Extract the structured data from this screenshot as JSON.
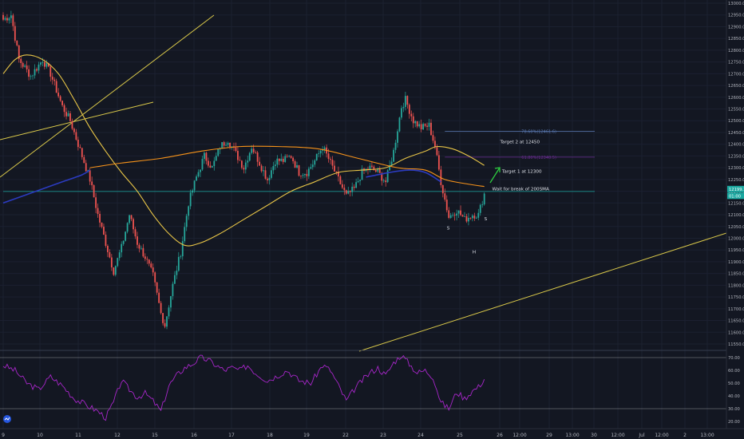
{
  "chart_data": [
    {
      "type": "candlestick",
      "title": "",
      "ylim": [
        11500,
        13000
      ],
      "y_ticks": [
        11550,
        11600,
        11650,
        11700,
        11750,
        11800,
        11850,
        11900,
        11950,
        12000,
        12050,
        12100,
        12150,
        12200,
        12250,
        12300,
        12350,
        12400,
        12450,
        12500,
        12550,
        12600,
        12650,
        12700,
        12750,
        12800,
        12850,
        12900,
        12950,
        13000
      ],
      "y_tick_labels": [
        "11550.0",
        "11600.0",
        "11650.0",
        "11700.0",
        "11750.0",
        "11800.0",
        "11850.0",
        "11900.0",
        "11950.0",
        "12000.0",
        "12050.0",
        "12100.0",
        "12150.0",
        "12200.0",
        "12250.0",
        "12300.0",
        "12350.0",
        "12400.0",
        "12450.0",
        "12500.0",
        "12550.0",
        "12600.0",
        "12650.0",
        "12700.0",
        "12750.0",
        "12800.0",
        "12850.0",
        "12900.0",
        "12950.0",
        "13000.0"
      ],
      "x_tick_labels": [
        "9",
        "10",
        "11",
        "12",
        "15",
        "16",
        "17",
        "18",
        "19",
        "22",
        "23",
        "24",
        "25",
        "26",
        "12:00",
        "29",
        "13:00",
        "30",
        "12:00",
        "Jul",
        "12:00",
        "2",
        "13:00"
      ],
      "last_price_label": "12199.1",
      "countdown_label": "01:00",
      "anchors": [
        {
          "i": 0,
          "v": 12930
        },
        {
          "i": 4,
          "v": 12950
        },
        {
          "i": 8,
          "v": 12760
        },
        {
          "i": 14,
          "v": 12690
        },
        {
          "i": 20,
          "v": 12760
        },
        {
          "i": 24,
          "v": 12700
        },
        {
          "i": 30,
          "v": 12560
        },
        {
          "i": 34,
          "v": 12500
        },
        {
          "i": 40,
          "v": 12350
        },
        {
          "i": 44,
          "v": 12250
        },
        {
          "i": 48,
          "v": 12100
        },
        {
          "i": 52,
          "v": 11980
        },
        {
          "i": 56,
          "v": 11860
        },
        {
          "i": 60,
          "v": 11960
        },
        {
          "i": 64,
          "v": 12100
        },
        {
          "i": 68,
          "v": 11980
        },
        {
          "i": 72,
          "v": 11920
        },
        {
          "i": 76,
          "v": 11840
        },
        {
          "i": 80,
          "v": 11680
        },
        {
          "i": 82,
          "v": 11630
        },
        {
          "i": 86,
          "v": 11800
        },
        {
          "i": 90,
          "v": 11940
        },
        {
          "i": 94,
          "v": 12150
        },
        {
          "i": 98,
          "v": 12260
        },
        {
          "i": 102,
          "v": 12350
        },
        {
          "i": 106,
          "v": 12300
        },
        {
          "i": 110,
          "v": 12390
        },
        {
          "i": 114,
          "v": 12420
        },
        {
          "i": 118,
          "v": 12360
        },
        {
          "i": 122,
          "v": 12300
        },
        {
          "i": 126,
          "v": 12390
        },
        {
          "i": 130,
          "v": 12320
        },
        {
          "i": 134,
          "v": 12250
        },
        {
          "i": 138,
          "v": 12330
        },
        {
          "i": 142,
          "v": 12330
        },
        {
          "i": 146,
          "v": 12350
        },
        {
          "i": 150,
          "v": 12280
        },
        {
          "i": 154,
          "v": 12280
        },
        {
          "i": 158,
          "v": 12330
        },
        {
          "i": 162,
          "v": 12390
        },
        {
          "i": 166,
          "v": 12320
        },
        {
          "i": 170,
          "v": 12250
        },
        {
          "i": 174,
          "v": 12180
        },
        {
          "i": 178,
          "v": 12210
        },
        {
          "i": 182,
          "v": 12280
        },
        {
          "i": 186,
          "v": 12300
        },
        {
          "i": 190,
          "v": 12280
        },
        {
          "i": 194,
          "v": 12240
        },
        {
          "i": 198,
          "v": 12370
        },
        {
          "i": 202,
          "v": 12560
        },
        {
          "i": 204,
          "v": 12590
        },
        {
          "i": 208,
          "v": 12500
        },
        {
          "i": 212,
          "v": 12470
        },
        {
          "i": 216,
          "v": 12480
        },
        {
          "i": 219,
          "v": 12390
        },
        {
          "i": 222,
          "v": 12240
        },
        {
          "i": 226,
          "v": 12090
        },
        {
          "i": 230,
          "v": 12120
        },
        {
          "i": 234,
          "v": 12080
        },
        {
          "i": 238,
          "v": 12100
        },
        {
          "i": 241,
          "v": 12100
        },
        {
          "i": 244,
          "v": 12190
        }
      ],
      "last_bar_index": 244,
      "moving_averages": [
        {
          "name": "",
          "color": "#e8c547",
          "points": [
            [
              0,
              12700
            ],
            [
              6,
              12760
            ],
            [
              12,
              12780
            ],
            [
              20,
              12760
            ],
            [
              28,
              12700
            ],
            [
              36,
              12590
            ],
            [
              44,
              12470
            ],
            [
              52,
              12370
            ],
            [
              60,
              12280
            ],
            [
              68,
              12200
            ],
            [
              76,
              12100
            ],
            [
              84,
              12020
            ],
            [
              92,
              11970
            ],
            [
              100,
              11980
            ],
            [
              110,
              12020
            ],
            [
              122,
              12080
            ],
            [
              134,
              12140
            ],
            [
              146,
              12200
            ],
            [
              158,
              12240
            ],
            [
              170,
              12280
            ],
            [
              182,
              12290
            ],
            [
              194,
              12300
            ],
            [
              204,
              12340
            ],
            [
              214,
              12370
            ],
            [
              220,
              12390
            ],
            [
              228,
              12380
            ],
            [
              236,
              12350
            ],
            [
              244,
              12310
            ]
          ]
        },
        {
          "name": "",
          "color": "#f7931a",
          "points": [
            [
              44,
              12300
            ],
            [
              60,
              12320
            ],
            [
              80,
              12340
            ],
            [
              100,
              12370
            ],
            [
              120,
              12390
            ],
            [
              140,
              12390
            ],
            [
              160,
              12380
            ],
            [
              180,
              12340
            ],
            [
              200,
              12300
            ],
            [
              214,
              12290
            ],
            [
              224,
              12250
            ],
            [
              236,
              12230
            ],
            [
              244,
              12220
            ]
          ]
        },
        {
          "name": "",
          "color": "#2b3bc0",
          "points": [
            [
              0,
              12150
            ],
            [
              10,
              12180
            ],
            [
              20,
              12210
            ],
            [
              30,
              12240
            ],
            [
              40,
              12270
            ],
            [
              44,
              12290
            ]
          ]
        },
        {
          "name": "",
          "color": "#2b3bc0",
          "points": [
            [
              184,
              12260
            ],
            [
              196,
              12280
            ],
            [
              206,
              12290
            ],
            [
              214,
              12280
            ],
            [
              222,
              12240
            ]
          ]
        }
      ],
      "horizontal_lines": [
        {
          "value": 12455,
          "label": "78.60%(12461.6)",
          "color": "#5b7bb5",
          "from": 224,
          "to": 300
        },
        {
          "value": 12345,
          "label": "61.80%(12340.5)",
          "color": "#6a2c91",
          "from": 224,
          "to": 300
        },
        {
          "value": 12199.1,
          "label": "",
          "color": "#1aa8a0",
          "from": 0,
          "to": 300
        }
      ],
      "annotations": [
        {
          "text": "Target 2 at 12450",
          "value": 12404,
          "index": 252
        },
        {
          "text": "Target 1 at 12300",
          "value": 12279,
          "index": 253
        },
        {
          "text": "Wait for break of 200SMA",
          "value": 12204,
          "index": 248
        },
        {
          "text": "S",
          "value": 12038,
          "index": 225
        },
        {
          "text": "S",
          "value": 12076,
          "index": 244
        },
        {
          "text": "H",
          "value": 11935,
          "index": 238
        }
      ]
    },
    {
      "type": "line",
      "title": "",
      "ylim": [
        15,
        75
      ],
      "y_ticks": [
        20,
        30,
        40,
        50,
        60,
        70
      ],
      "y_tick_labels": [
        "20.00",
        "30.00",
        "40.00",
        "50.00",
        "60.00",
        "70.00"
      ],
      "levels": [
        70,
        30
      ],
      "color": "#a726c9",
      "anchors": [
        [
          0,
          64
        ],
        [
          6,
          60
        ],
        [
          12,
          50
        ],
        [
          18,
          45
        ],
        [
          24,
          55
        ],
        [
          30,
          48
        ],
        [
          36,
          38
        ],
        [
          42,
          33
        ],
        [
          48,
          28
        ],
        [
          52,
          23
        ],
        [
          56,
          35
        ],
        [
          60,
          52
        ],
        [
          64,
          45
        ],
        [
          68,
          39
        ],
        [
          72,
          42
        ],
        [
          76,
          36
        ],
        [
          80,
          28
        ],
        [
          84,
          48
        ],
        [
          88,
          56
        ],
        [
          92,
          62
        ],
        [
          96,
          65
        ],
        [
          100,
          70
        ],
        [
          104,
          68
        ],
        [
          108,
          64
        ],
        [
          112,
          60
        ],
        [
          116,
          62
        ],
        [
          120,
          60
        ],
        [
          124,
          64
        ],
        [
          128,
          58
        ],
        [
          134,
          52
        ],
        [
          138,
          55
        ],
        [
          144,
          60
        ],
        [
          150,
          52
        ],
        [
          156,
          50
        ],
        [
          162,
          64
        ],
        [
          166,
          60
        ],
        [
          170,
          48
        ],
        [
          174,
          36
        ],
        [
          178,
          45
        ],
        [
          182,
          52
        ],
        [
          186,
          58
        ],
        [
          190,
          62
        ],
        [
          194,
          56
        ],
        [
          198,
          66
        ],
        [
          202,
          72
        ],
        [
          206,
          65
        ],
        [
          210,
          58
        ],
        [
          214,
          60
        ],
        [
          218,
          55
        ],
        [
          222,
          35
        ],
        [
          226,
          30
        ],
        [
          230,
          43
        ],
        [
          234,
          38
        ],
        [
          238,
          44
        ],
        [
          241,
          47
        ],
        [
          244,
          53
        ]
      ]
    }
  ]
}
